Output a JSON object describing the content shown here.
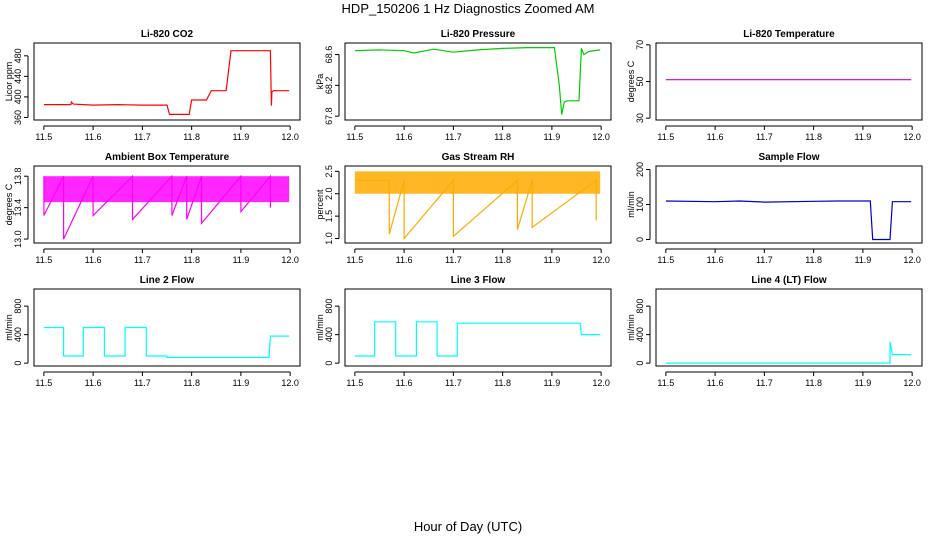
{
  "figure": {
    "title": "HDP_150206  1 Hz Diagnostics Zoomed AM",
    "xlabel": "Hour of Day (UTC)"
  },
  "chart_data": [
    {
      "type": "line",
      "title": "Li-820 CO2",
      "ylabel": "Licor ppm",
      "color": "#ff0000",
      "xlim": [
        11.48,
        12.02
      ],
      "ylim": [
        355,
        505
      ],
      "xticks": [
        "11.5",
        "11.6",
        "11.7",
        "11.8",
        "11.9",
        "12.0"
      ],
      "yticks": [
        "360",
        "400",
        "440",
        "480"
      ],
      "series": [
        {
          "x": [
            11.5,
            11.555,
            11.556,
            11.56,
            11.6,
            11.65,
            11.7,
            11.75,
            11.755,
            11.795,
            11.8,
            11.83,
            11.84,
            11.87,
            11.88,
            11.96,
            11.962,
            11.963,
            11.966,
            11.998
          ],
          "y": [
            385,
            385,
            390,
            386,
            384,
            385,
            384,
            384,
            366,
            366,
            394,
            394,
            412,
            412,
            490,
            490,
            383,
            410,
            412,
            412
          ]
        }
      ]
    },
    {
      "type": "line",
      "title": "Li-820 Pressure",
      "ylabel": "kPa",
      "color": "#00cc00",
      "xlim": [
        11.48,
        12.02
      ],
      "ylim": [
        67.75,
        68.75
      ],
      "xticks": [
        "11.5",
        "11.6",
        "11.7",
        "11.8",
        "11.9",
        "12.0"
      ],
      "yticks": [
        "67.8",
        "68.2",
        "68.6"
      ],
      "series": [
        {
          "x": [
            11.5,
            11.55,
            11.6,
            11.62,
            11.66,
            11.7,
            11.75,
            11.8,
            11.85,
            11.905,
            11.915,
            11.92,
            11.925,
            11.93,
            11.955,
            11.96,
            11.965,
            11.975,
            11.998
          ],
          "y": [
            68.65,
            68.66,
            68.65,
            68.62,
            68.67,
            68.63,
            68.66,
            68.68,
            68.69,
            68.69,
            68.2,
            67.82,
            67.98,
            68.0,
            68.0,
            68.68,
            68.6,
            68.64,
            68.66
          ]
        }
      ]
    },
    {
      "type": "line",
      "title": "Li-820 Temperature",
      "ylabel": "degrees C",
      "color": "#cc00cc",
      "xlim": [
        11.48,
        12.02
      ],
      "ylim": [
        29,
        71
      ],
      "xticks": [
        "11.5",
        "11.6",
        "11.7",
        "11.8",
        "11.9",
        "12.0"
      ],
      "yticks": [
        "30",
        "50",
        "70"
      ],
      "series": [
        {
          "x": [
            11.5,
            11.998
          ],
          "y": [
            51,
            51
          ]
        }
      ]
    },
    {
      "type": "line",
      "title": "Ambient Box Temperature",
      "ylabel": "degrees C",
      "color": "#ff00ff",
      "xlim": [
        11.48,
        12.02
      ],
      "ylim": [
        12.95,
        13.93
      ],
      "xticks": [
        "11.5",
        "11.6",
        "11.7",
        "11.8",
        "11.9",
        "12.0"
      ],
      "yticks": [
        "13.0",
        "13.4",
        "13.8"
      ],
      "band": {
        "x0": 11.5,
        "x1": 11.998,
        "low": 13.47,
        "high": 13.8
      },
      "series": [
        {
          "x": [
            11.5,
            11.5,
            11.54,
            11.54,
            11.6,
            11.6,
            11.68,
            11.68,
            11.76,
            11.76,
            11.79,
            11.79,
            11.82,
            11.82,
            11.9,
            11.9,
            11.96,
            11.96
          ],
          "y": [
            13.8,
            13.3,
            13.8,
            13.0,
            13.8,
            13.3,
            13.8,
            13.25,
            13.8,
            13.3,
            13.8,
            13.25,
            13.8,
            13.2,
            13.8,
            13.35,
            13.8,
            13.4
          ]
        }
      ]
    },
    {
      "type": "line",
      "title": "Gas Stream RH",
      "ylabel": "percent",
      "color": "#ffaa00",
      "xlim": [
        11.48,
        12.02
      ],
      "ylim": [
        0.9,
        2.62
      ],
      "xticks": [
        "11.5",
        "11.6",
        "11.7",
        "11.8",
        "11.9",
        "12.0"
      ],
      "yticks": [
        "1.0",
        "1.5",
        "2.0",
        "2.5"
      ],
      "band": {
        "x0": 11.5,
        "x1": 11.998,
        "low": 2.0,
        "high": 2.5
      },
      "series": [
        {
          "x": [
            11.5,
            11.57,
            11.57,
            11.6,
            11.6,
            11.7,
            11.7,
            11.83,
            11.83,
            11.86,
            11.86,
            11.99,
            11.99
          ],
          "y": [
            2.3,
            2.3,
            1.1,
            2.3,
            1.0,
            2.3,
            1.05,
            2.3,
            1.2,
            2.3,
            1.25,
            2.3,
            1.4
          ]
        }
      ]
    },
    {
      "type": "line",
      "title": "Sample Flow",
      "ylabel": "ml/min",
      "color": "#0000cc",
      "xlim": [
        11.48,
        12.02
      ],
      "ylim": [
        -10,
        210
      ],
      "xticks": [
        "11.5",
        "11.6",
        "11.7",
        "11.8",
        "11.9",
        "12.0"
      ],
      "yticks": [
        "0",
        "100",
        "200"
      ],
      "series": [
        {
          "x": [
            11.5,
            11.6,
            11.65,
            11.7,
            11.8,
            11.85,
            11.915,
            11.92,
            11.955,
            11.96,
            11.998
          ],
          "y": [
            110,
            108,
            110,
            107,
            109,
            110,
            110,
            0,
            0,
            108,
            108
          ]
        }
      ]
    },
    {
      "type": "line",
      "title": "Line 2 Flow",
      "ylabel": "ml/min",
      "color": "#00ffff",
      "xlim": [
        11.48,
        12.02
      ],
      "ylim": [
        -40,
        1040
      ],
      "xticks": [
        "11.5",
        "11.6",
        "11.7",
        "11.8",
        "11.9",
        "12.0"
      ],
      "yticks": [
        "0",
        "400",
        "800"
      ],
      "series": [
        {
          "x": [
            11.5,
            11.54,
            11.54,
            11.58,
            11.58,
            11.623,
            11.623,
            11.665,
            11.665,
            11.708,
            11.708,
            11.75,
            11.75,
            11.957,
            11.96,
            11.998
          ],
          "y": [
            500,
            500,
            100,
            100,
            500,
            500,
            100,
            100,
            500,
            500,
            100,
            100,
            80,
            80,
            380,
            380
          ]
        }
      ]
    },
    {
      "type": "line",
      "title": "Line 3 Flow",
      "ylabel": "ml/min",
      "color": "#00ffff",
      "xlim": [
        11.48,
        12.02
      ],
      "ylim": [
        -40,
        1040
      ],
      "xticks": [
        "11.5",
        "11.6",
        "11.7",
        "11.8",
        "11.9",
        "12.0"
      ],
      "yticks": [
        "0",
        "400",
        "800"
      ],
      "series": [
        {
          "x": [
            11.5,
            11.54,
            11.54,
            11.583,
            11.583,
            11.625,
            11.625,
            11.667,
            11.667,
            11.708,
            11.708,
            11.957,
            11.96,
            11.998
          ],
          "y": [
            100,
            100,
            580,
            580,
            100,
            100,
            580,
            580,
            100,
            100,
            560,
            560,
            400,
            400
          ]
        }
      ]
    },
    {
      "type": "line",
      "title": "Line 4 (LT) Flow",
      "ylabel": "ml/min",
      "color": "#00ffff",
      "xlim": [
        11.48,
        12.02
      ],
      "ylim": [
        -40,
        1040
      ],
      "xticks": [
        "11.5",
        "11.6",
        "11.7",
        "11.8",
        "11.9",
        "12.0"
      ],
      "yticks": [
        "0",
        "400",
        "800"
      ],
      "series": [
        {
          "x": [
            11.5,
            11.955,
            11.955,
            11.96,
            11.96,
            11.998
          ],
          "y": [
            0,
            0,
            300,
            120,
            120,
            120
          ]
        }
      ]
    }
  ]
}
